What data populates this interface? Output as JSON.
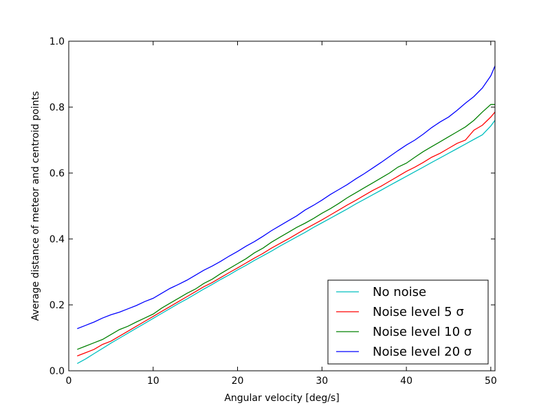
{
  "chart_data": {
    "type": "line",
    "title": "",
    "xlabel": "Angular velocity [deg/s]",
    "ylabel": "Average distance of meteor and centroid points",
    "xlim": [
      0,
      50.5
    ],
    "ylim": [
      0.0,
      1.0
    ],
    "xticks": [
      "0",
      "10",
      "20",
      "30",
      "40",
      "50"
    ],
    "yticks": [
      "0.0",
      "0.2",
      "0.4",
      "0.6",
      "0.8",
      "1.0"
    ],
    "grid": false,
    "legend_position": "lower-right",
    "x": [
      1,
      2,
      3,
      4,
      5,
      6,
      7,
      8,
      9,
      10,
      11,
      12,
      13,
      14,
      15,
      16,
      17,
      18,
      19,
      20,
      21,
      22,
      23,
      24,
      25,
      26,
      27,
      28,
      29,
      30,
      31,
      32,
      33,
      34,
      35,
      36,
      37,
      38,
      39,
      40,
      41,
      42,
      43,
      44,
      45,
      46,
      47,
      48,
      49,
      50,
      50.5
    ],
    "series": [
      {
        "name": "No noise",
        "color": "#00bfbf",
        "values": [
          0.022,
          0.036,
          0.052,
          0.068,
          0.084,
          0.099,
          0.114,
          0.129,
          0.144,
          0.159,
          0.174,
          0.189,
          0.204,
          0.218,
          0.233,
          0.248,
          0.262,
          0.277,
          0.291,
          0.306,
          0.32,
          0.335,
          0.349,
          0.363,
          0.378,
          0.392,
          0.406,
          0.42,
          0.435,
          0.449,
          0.463,
          0.477,
          0.491,
          0.506,
          0.52,
          0.534,
          0.548,
          0.562,
          0.576,
          0.59,
          0.604,
          0.618,
          0.632,
          0.646,
          0.66,
          0.674,
          0.688,
          0.702,
          0.716,
          0.743,
          0.76
        ]
      },
      {
        "name": "Noise level 5 σ",
        "color": "#ff0000",
        "values": [
          0.045,
          0.055,
          0.065,
          0.08,
          0.09,
          0.105,
          0.12,
          0.135,
          0.15,
          0.165,
          0.18,
          0.195,
          0.21,
          0.225,
          0.24,
          0.255,
          0.268,
          0.283,
          0.298,
          0.312,
          0.327,
          0.342,
          0.356,
          0.372,
          0.386,
          0.4,
          0.415,
          0.43,
          0.444,
          0.458,
          0.473,
          0.488,
          0.503,
          0.517,
          0.532,
          0.547,
          0.56,
          0.575,
          0.59,
          0.605,
          0.618,
          0.632,
          0.648,
          0.66,
          0.675,
          0.69,
          0.7,
          0.73,
          0.745,
          0.77,
          0.785
        ]
      },
      {
        "name": "Noise level 10 σ",
        "color": "#008000",
        "values": [
          0.065,
          0.075,
          0.085,
          0.095,
          0.11,
          0.125,
          0.135,
          0.148,
          0.16,
          0.172,
          0.19,
          0.205,
          0.22,
          0.235,
          0.248,
          0.265,
          0.278,
          0.295,
          0.31,
          0.325,
          0.34,
          0.358,
          0.372,
          0.39,
          0.405,
          0.42,
          0.435,
          0.448,
          0.462,
          0.478,
          0.492,
          0.508,
          0.525,
          0.54,
          0.555,
          0.57,
          0.585,
          0.6,
          0.618,
          0.63,
          0.648,
          0.665,
          0.68,
          0.695,
          0.71,
          0.725,
          0.74,
          0.76,
          0.785,
          0.808,
          0.808
        ]
      },
      {
        "name": "Noise level 20 σ",
        "color": "#0000ff",
        "values": [
          0.128,
          0.138,
          0.148,
          0.16,
          0.17,
          0.178,
          0.188,
          0.198,
          0.21,
          0.22,
          0.235,
          0.25,
          0.262,
          0.275,
          0.29,
          0.305,
          0.318,
          0.332,
          0.348,
          0.362,
          0.378,
          0.392,
          0.408,
          0.425,
          0.44,
          0.455,
          0.47,
          0.488,
          0.502,
          0.518,
          0.535,
          0.55,
          0.565,
          0.582,
          0.598,
          0.615,
          0.632,
          0.65,
          0.668,
          0.685,
          0.7,
          0.718,
          0.738,
          0.755,
          0.77,
          0.79,
          0.812,
          0.832,
          0.858,
          0.895,
          0.925
        ]
      }
    ]
  }
}
